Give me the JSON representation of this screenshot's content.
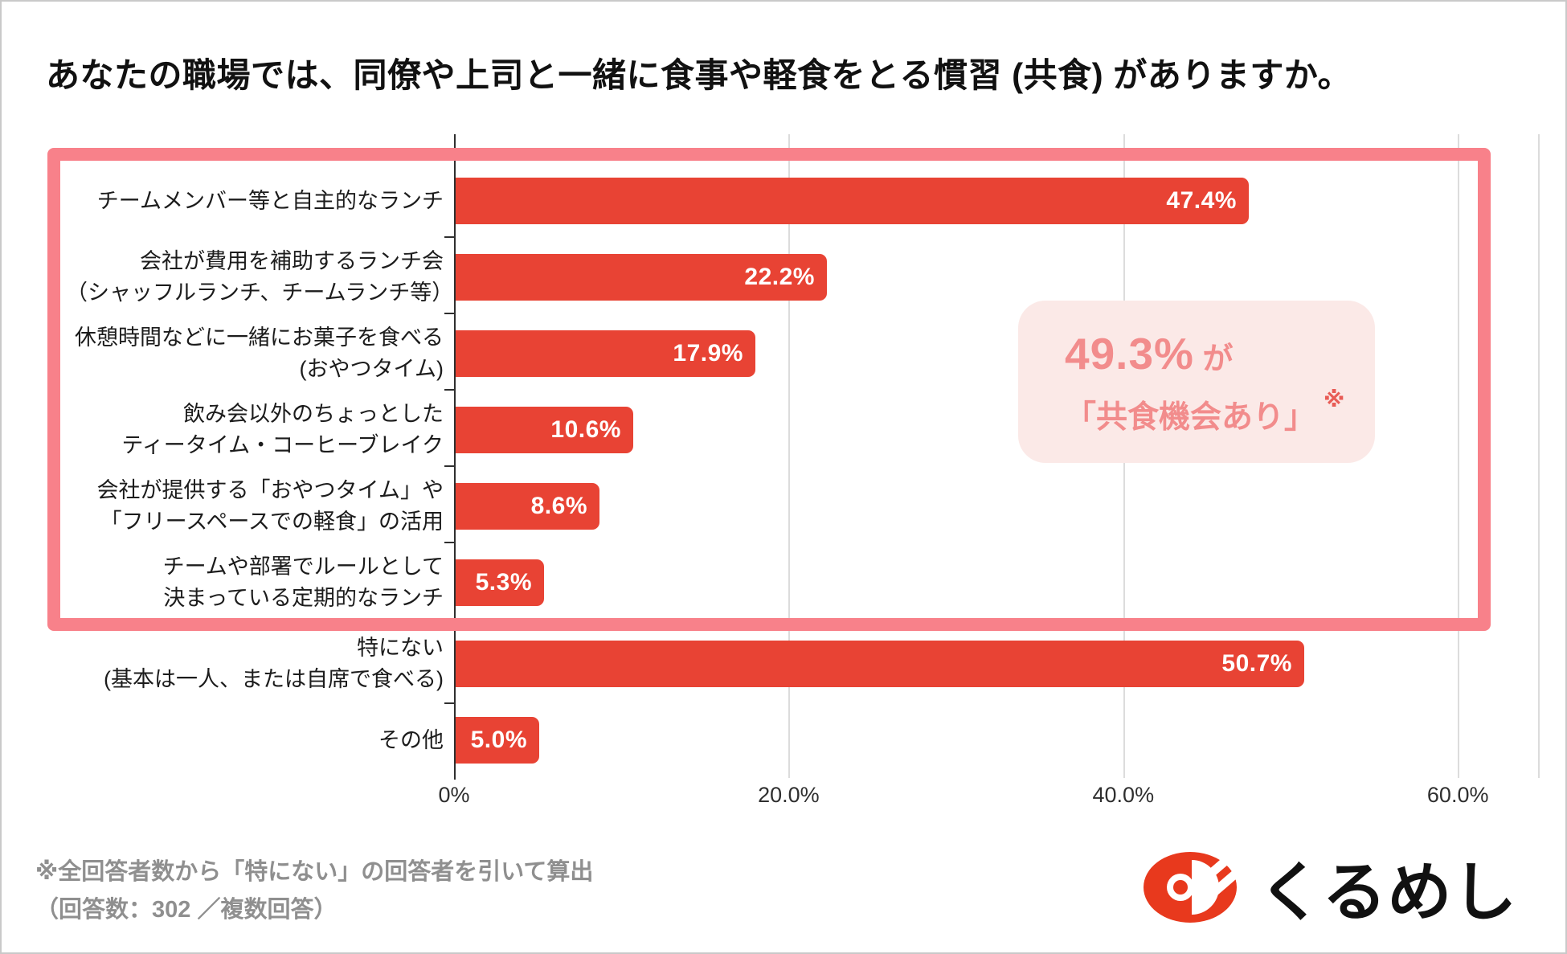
{
  "title": "あなたの職場では、同僚や上司と一緒に食事や軽食をとる慣習 (共食) がありますか。",
  "chart_data": {
    "type": "bar",
    "orientation": "horizontal",
    "categories": [
      [
        "チームメンバー等と自主的なランチ"
      ],
      [
        "会社が費用を補助するランチ会",
        "（シャッフルランチ、チームランチ等）"
      ],
      [
        "休憩時間などに一緒にお菓子を食べる",
        "(おやつタイム)"
      ],
      [
        "飲み会以外のちょっとした",
        "ティータイム・コーヒーブレイク"
      ],
      [
        "会社が提供する「おやつタイム」や",
        "「フリースペースでの軽食」の活用"
      ],
      [
        "チームや部署でルールとして",
        "決まっている定期的なランチ"
      ],
      [
        "特にない",
        "(基本は一人、または自席で食べる)"
      ],
      [
        "その他"
      ]
    ],
    "values": [
      47.4,
      22.2,
      17.9,
      10.6,
      8.6,
      5.3,
      50.7,
      5.0
    ],
    "value_labels": [
      "47.4%",
      "22.2%",
      "17.9%",
      "10.6%",
      "8.6%",
      "5.3%",
      "50.7%",
      "5.0%"
    ],
    "x_ticks": [
      {
        "label": "0%",
        "value": 0
      },
      {
        "label": "20.0%",
        "value": 20
      },
      {
        "label": "40.0%",
        "value": 40
      },
      {
        "label": "60.0%",
        "value": 60
      }
    ],
    "xlim": [
      0,
      64.8
    ],
    "grid": true,
    "highlighted_rows": [
      0,
      1,
      2,
      3,
      4,
      5
    ],
    "colors": {
      "bar": "#e84334",
      "grid": "#dcdcdc",
      "axis": "#2f2f2f",
      "highlight_border": "#f8818a",
      "callout_bg": "#fbe9e7",
      "callout_text": "#f28c8c",
      "footnote_mark": "#e85b55"
    },
    "annotation": {
      "line1_value": "49.3%",
      "line1_suffix": " が",
      "line2": "「共食機会あり」",
      "footnote_mark": "※"
    }
  },
  "footnote": {
    "line1": "※全回答者数から「特にない」の回答者を引いて算出",
    "line2": "（回答数：302 ／複数回答）"
  },
  "logo": {
    "text": "くるめし",
    "icon_color": "#e8391d"
  }
}
